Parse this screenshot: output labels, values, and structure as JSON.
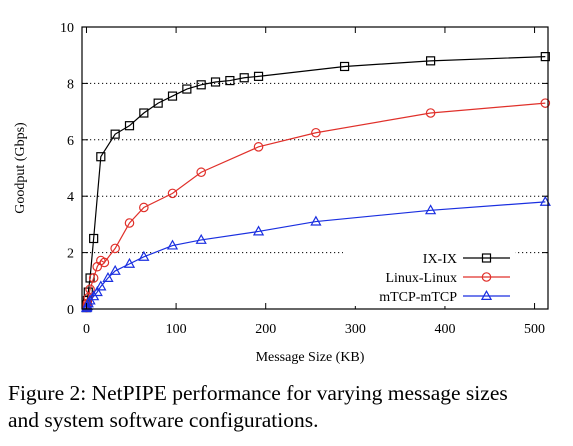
{
  "chart_data": {
    "type": "line",
    "title": "",
    "xlabel": "Message Size (KB)",
    "ylabel": "Goodput (Gbps)",
    "xlim": [
      -5,
      515
    ],
    "ylim": [
      0,
      10
    ],
    "xticks": [
      0,
      100,
      200,
      300,
      400,
      500
    ],
    "yticks": [
      0,
      2,
      4,
      6,
      8,
      10
    ],
    "grid": "horizontal dotted",
    "legend_position": "bottom-right",
    "series": [
      {
        "name": "IX-IX",
        "color": "#000000",
        "marker": "square",
        "x": [
          0.064,
          0.5,
          1,
          2,
          4,
          8,
          16,
          32,
          48,
          64,
          80,
          96,
          112,
          128,
          144,
          160,
          176,
          192,
          288,
          384,
          512
        ],
        "y": [
          0.05,
          0.15,
          0.3,
          0.6,
          1.1,
          2.5,
          5.4,
          6.2,
          6.5,
          6.95,
          7.3,
          7.55,
          7.8,
          7.95,
          8.05,
          8.1,
          8.2,
          8.25,
          8.6,
          8.8,
          8.95
        ]
      },
      {
        "name": "Linux-Linux",
        "color": "#e0302a",
        "marker": "circle",
        "x": [
          0.064,
          0.5,
          1,
          2,
          4,
          8,
          12,
          16,
          20,
          32,
          48,
          64,
          96,
          128,
          192,
          256,
          384,
          512
        ],
        "y": [
          0.05,
          0.1,
          0.2,
          0.4,
          0.7,
          1.1,
          1.5,
          1.72,
          1.65,
          2.15,
          3.05,
          3.6,
          4.1,
          4.85,
          5.75,
          6.25,
          6.95,
          7.3
        ]
      },
      {
        "name": "mTCP-mTCP",
        "color": "#1a2fe0",
        "marker": "triangle",
        "x": [
          0.064,
          0.5,
          1,
          2,
          4,
          8,
          12,
          16,
          24,
          32,
          48,
          64,
          96,
          128,
          192,
          256,
          384,
          512
        ],
        "y": [
          0.03,
          0.06,
          0.1,
          0.2,
          0.3,
          0.45,
          0.6,
          0.8,
          1.1,
          1.35,
          1.6,
          1.85,
          2.25,
          2.45,
          2.75,
          3.1,
          3.5,
          3.8
        ]
      }
    ]
  },
  "caption": {
    "line1": "Figure 2: NetPIPE performance for varying message sizes",
    "line2": "and system software configurations."
  }
}
